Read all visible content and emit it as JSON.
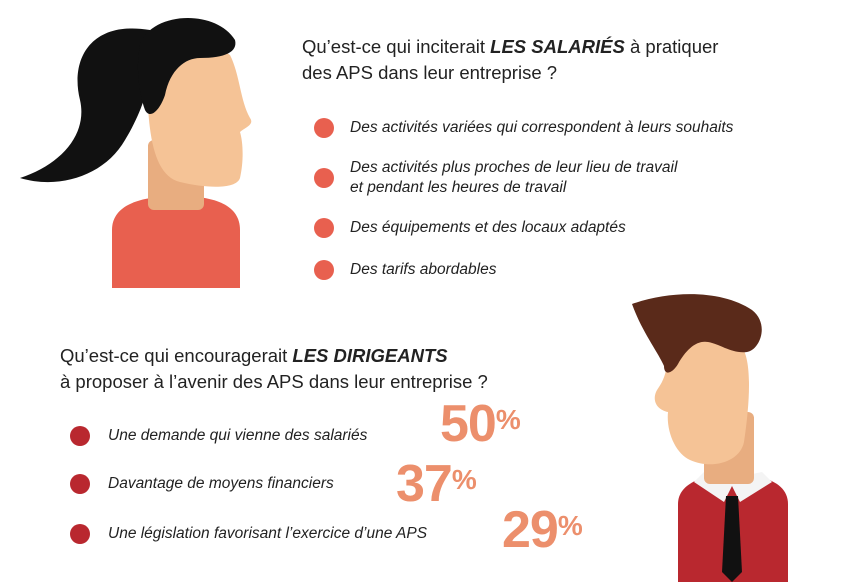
{
  "question_employees": {
    "prefix": "Qu’est-ce qui inciterait ",
    "emphasis": "LES SALARIÉS",
    "suffix": " à pratiquer",
    "line2": "des APS dans leur entreprise ?"
  },
  "employee_items": [
    {
      "line1": "Des activités variées qui correspondent à leurs souhaits"
    },
    {
      "line1": "Des activités plus proches de leur lieu de travail",
      "line2": "et pendant les heures de travail"
    },
    {
      "line1": "Des équipements et des locaux adaptés"
    },
    {
      "line1": "Des tarifs abordables"
    }
  ],
  "question_managers": {
    "prefix": "Qu’est-ce qui encouragerait ",
    "emphasis": "LES DIRIGEANTS",
    "line2": "à proposer à l’avenir des APS dans leur entreprise ?"
  },
  "manager_items": [
    {
      "label": "Une demande qui vienne des salariés",
      "value": "50",
      "unit": "%"
    },
    {
      "label": "Davantage de moyens financiers",
      "value": "37",
      "unit": "%"
    },
    {
      "label": "Une législation favorisant l’exercice d’une APS",
      "value": "29",
      "unit": "%"
    }
  ],
  "colors": {
    "coral": "#e8604f",
    "dark_red": "#b9282f",
    "percent": "#ec8f6c",
    "skin": "#f5c396",
    "neck": "#e8ad80",
    "hair_woman": "#111111",
    "hair_man": "#5a2a1a"
  }
}
